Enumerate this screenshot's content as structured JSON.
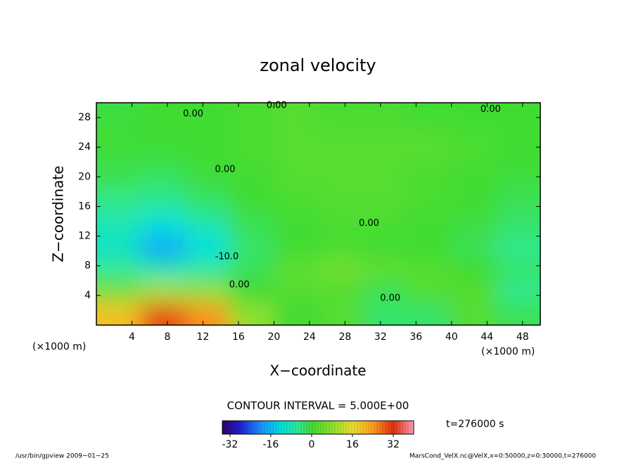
{
  "chart_data": {
    "type": "contour",
    "title": "zonal velocity",
    "x_label": "X−coordinate",
    "y_label": "Z−coordinate",
    "x_unit": "(×1000 m)",
    "y_unit": "(×1000 m)",
    "xlim": [
      0,
      50
    ],
    "ylim": [
      0,
      30
    ],
    "xticks": [
      4,
      8,
      12,
      16,
      20,
      24,
      28,
      32,
      36,
      40,
      44,
      48
    ],
    "yticks": [
      4,
      8,
      12,
      16,
      20,
      24,
      28
    ],
    "x": [
      2.5,
      7.5,
      12.5,
      17.5,
      22.5,
      27.5,
      32.5,
      37.5,
      42.5,
      47.5
    ],
    "z": [
      1.5,
      4.5,
      7.5,
      10.5,
      13.5,
      16.5,
      19.5,
      22.5,
      25.5,
      28.5
    ],
    "values": [
      [
        20,
        30,
        25,
        8,
        0,
        2,
        -3,
        -3,
        2,
        -2
      ],
      [
        5,
        10,
        8,
        0,
        2,
        2,
        -2,
        2,
        2,
        -5
      ],
      [
        -5,
        -8,
        -6,
        -2,
        3,
        5,
        3,
        2,
        0,
        -3
      ],
      [
        -10,
        -18,
        -12,
        -3,
        0,
        1,
        0,
        0,
        -2,
        -5
      ],
      [
        -8,
        -12,
        -8,
        -2,
        0,
        1,
        1,
        0,
        -1,
        -3
      ],
      [
        -5,
        -6,
        -3,
        0,
        1,
        2,
        2,
        1,
        0,
        -2
      ],
      [
        -2,
        -3,
        -1,
        0,
        2,
        2,
        2,
        1,
        0,
        -1
      ],
      [
        -1,
        -1,
        0,
        1,
        2,
        2,
        2,
        2,
        1,
        0
      ],
      [
        0,
        0,
        0,
        1,
        2,
        2,
        2,
        2,
        1,
        0
      ],
      [
        -1,
        0,
        0,
        1,
        2,
        1,
        1,
        0,
        0,
        0
      ]
    ],
    "colormap": {
      "values": [
        -35,
        -28,
        -20,
        -12,
        -5,
        0,
        8,
        16,
        24,
        32,
        40
      ],
      "colors": [
        "#30006a",
        "#2020d0",
        "#1e90ff",
        "#00e0e0",
        "#30e890",
        "#40dc30",
        "#90e030",
        "#e8e030",
        "#ffa020",
        "#e03010",
        "#ff9fb0"
      ]
    },
    "clim": [
      -35,
      40
    ],
    "cticks": [
      -32,
      -16,
      0,
      16,
      32
    ],
    "contour_labels": [
      {
        "text": "0.00",
        "x": 10.9,
        "z": 28.5
      },
      {
        "text": "0.00",
        "x": 20.3,
        "z": 29.6
      },
      {
        "text": "0.00",
        "x": 44.4,
        "z": 29.1
      },
      {
        "text": "0.00",
        "x": 14.5,
        "z": 21
      },
      {
        "text": "0.00",
        "x": 30.7,
        "z": 13.7
      },
      {
        "text": "-10.0",
        "x": 14.7,
        "z": 9.2
      },
      {
        "text": "0.00",
        "x": 16.1,
        "z": 5.4
      },
      {
        "text": "0.00",
        "x": 33.1,
        "z": 3.6
      }
    ],
    "contour_interval": "CONTOUR INTERVAL = 5.000E+00",
    "time": "t=276000 s",
    "footer_left": "/usr/bin/gpview  2009−01−25",
    "footer_right": "MarsCond_VelX.nc@VelX,x=0:50000,z=0:30000,t=276000"
  }
}
